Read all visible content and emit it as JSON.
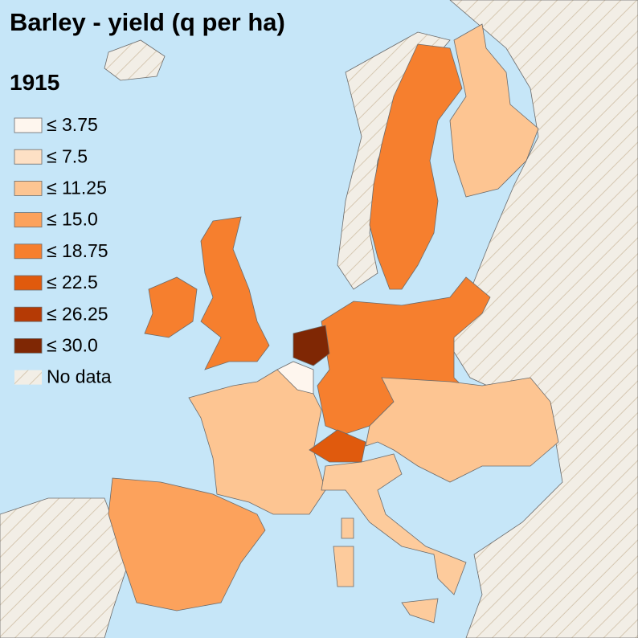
{
  "title": "Barley - yield (q per ha)",
  "year": "1915",
  "legend": [
    {
      "label": "≤ 3.75",
      "color": "#fef6ee"
    },
    {
      "label": "≤ 7.5",
      "color": "#fde0c5"
    },
    {
      "label": "≤ 11.25",
      "color": "#fdc592"
    },
    {
      "label": "≤ 15.0",
      "color": "#fca25c"
    },
    {
      "label": "≤ 18.75",
      "color": "#f67f2e"
    },
    {
      "label": "≤ 22.5",
      "color": "#e05a0d"
    },
    {
      "label": "≤ 26.25",
      "color": "#b53a05"
    },
    {
      "label": "≤ 30.0",
      "color": "#7f2704"
    },
    {
      "label": "No data"
    }
  ]
}
